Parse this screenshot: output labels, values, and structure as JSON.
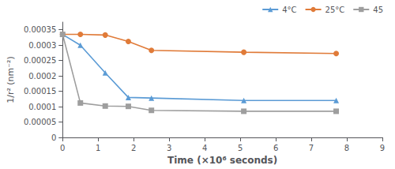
{
  "chart_data": {
    "type": "line",
    "xlabel": "Time (×10⁶ seconds)",
    "ylabel": "1/r² (nm⁻²)",
    "x": [
      0,
      0.5,
      1.2,
      1.85,
      2.5,
      5.1,
      7.7
    ],
    "series": [
      {
        "name": "4°C",
        "color": "#5b9bd5",
        "marker": "triangle",
        "values": [
          0.000335,
          0.0003,
          0.00021,
          0.00013,
          0.000128,
          0.00012,
          0.00012
        ]
      },
      {
        "name": "25°C",
        "color": "#e07b39",
        "marker": "circle",
        "values": [
          0.000335,
          0.000335,
          0.000333,
          0.000312,
          0.000283,
          0.000277,
          0.000273
        ]
      },
      {
        "name": "45",
        "color": "#9e9e9e",
        "marker": "square",
        "values": [
          0.000335,
          0.000112,
          0.000102,
          0.000101,
          8.8e-05,
          8.5e-05,
          8.5e-05
        ]
      }
    ],
    "xlim": [
      0,
      9
    ],
    "xticks": [
      0,
      1,
      2,
      3,
      4,
      5,
      6,
      7,
      8,
      9
    ],
    "ylim": [
      0,
      0.000375
    ],
    "yticks": [
      0,
      5e-05,
      0.0001,
      0.00015,
      0.0002,
      0.00025,
      0.0003,
      0.00035
    ],
    "legend": "upper right",
    "grid": false
  }
}
